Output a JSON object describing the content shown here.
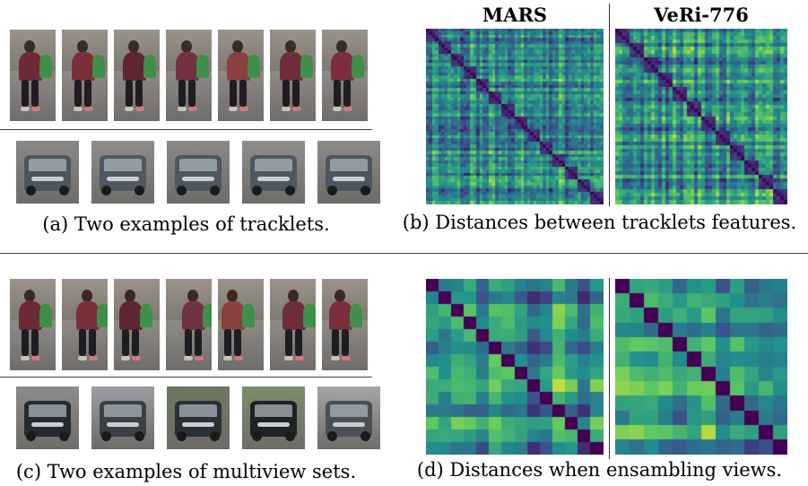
{
  "figure": {
    "panel_a": {
      "caption": "(a) Two examples of tracklets."
    },
    "panel_b": {
      "caption": "(b) Distances between tracklets features.",
      "titles": [
        "MARS",
        "VeRi-776"
      ]
    },
    "panel_c": {
      "caption": "(c) Two examples of multiview sets."
    },
    "panel_d": {
      "caption": "(d) Distances when ensambling views."
    }
  },
  "thumbnails": {
    "tracklet_persons": 7,
    "tracklet_cars": 5,
    "multiview_persons": 7,
    "multiview_cars": 5
  },
  "heatmaps": {
    "colormap": "viridis",
    "colors": {
      "low": "#440154",
      "mid": "#21918c",
      "high": "#fde725"
    },
    "matrices": [
      {
        "id": "b-mars",
        "dataset": "MARS",
        "blocks": 14,
        "style": "tracklets"
      },
      {
        "id": "b-veri",
        "dataset": "VeRi-776",
        "blocks": 12,
        "style": "tracklets"
      },
      {
        "id": "d-mars",
        "dataset": "MARS",
        "blocks": 14,
        "style": "ensemble"
      },
      {
        "id": "d-veri",
        "dataset": "VeRi-776",
        "blocks": 12,
        "style": "ensemble"
      }
    ]
  }
}
